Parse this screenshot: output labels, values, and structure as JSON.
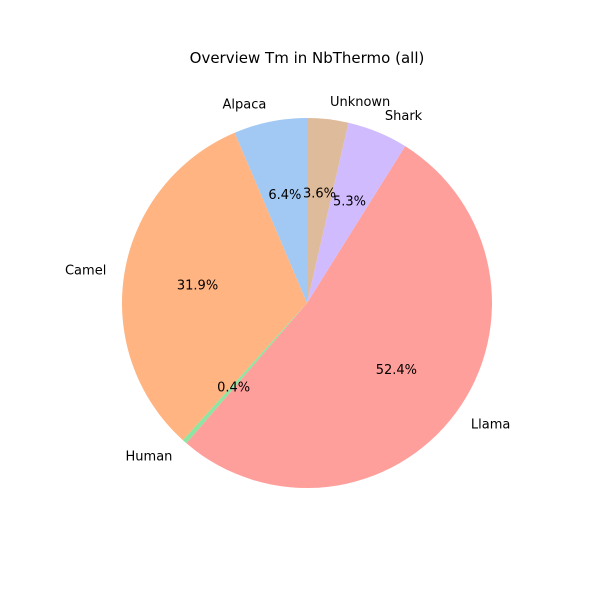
{
  "chart_data": {
    "type": "pie",
    "title": "Overview Tm in NbThermo (all)",
    "slices": [
      {
        "label": "Alpaca",
        "value": 6.4,
        "pct_label": "6.4%",
        "color": "#a1c9f4"
      },
      {
        "label": "Camel",
        "value": 31.9,
        "pct_label": "31.9%",
        "color": "#ffb482"
      },
      {
        "label": "Human",
        "value": 0.4,
        "pct_label": "0.4%",
        "color": "#8de5a1"
      },
      {
        "label": "Llama",
        "value": 52.4,
        "pct_label": "52.4%",
        "color": "#ff9f9b"
      },
      {
        "label": "Shark",
        "value": 5.3,
        "pct_label": "5.3%",
        "color": "#d0bbff"
      },
      {
        "label": "Unknown",
        "value": 3.6,
        "pct_label": "3.6%",
        "color": "#debb9b"
      }
    ]
  }
}
